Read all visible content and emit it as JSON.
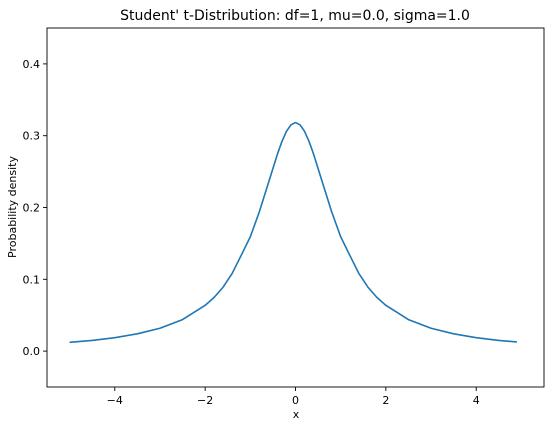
{
  "chart_data": {
    "type": "line",
    "title": "Student' t-Distribution: df=1, mu=0.0, sigma=1.0",
    "xlabel": "x",
    "ylabel": "Probability density",
    "xlim": [
      -5.5,
      5.5
    ],
    "ylim": [
      -0.05,
      0.45
    ],
    "xticks": [
      -4,
      -2,
      0,
      2,
      4
    ],
    "xtick_labels": [
      "−4",
      "−2",
      "0",
      "2",
      "4"
    ],
    "yticks": [
      0.0,
      0.1,
      0.2,
      0.3,
      0.4
    ],
    "ytick_labels": [
      "0.0",
      "0.1",
      "0.2",
      "0.3",
      "0.4"
    ],
    "grid": false,
    "line_color": "#1f77b4",
    "series": [
      {
        "x": [
          -5.0,
          -4.5,
          -4.0,
          -3.5,
          -3.0,
          -2.5,
          -2.0,
          -1.8,
          -1.6,
          -1.4,
          -1.2,
          -1.0,
          -0.8,
          -0.6,
          -0.4,
          -0.3,
          -0.2,
          -0.1,
          0.0,
          0.1,
          0.2,
          0.3,
          0.4,
          0.6,
          0.8,
          1.0,
          1.2,
          1.4,
          1.6,
          1.8,
          2.0,
          2.5,
          3.0,
          3.5,
          4.0,
          4.5,
          4.9
        ],
        "y": [
          0.0122,
          0.0149,
          0.0187,
          0.0241,
          0.0318,
          0.0439,
          0.0637,
          0.0748,
          0.0893,
          0.1084,
          0.1336,
          0.1592,
          0.1941,
          0.2341,
          0.2744,
          0.292,
          0.3061,
          0.3152,
          0.3183,
          0.3152,
          0.3061,
          0.292,
          0.2744,
          0.2341,
          0.1941,
          0.1592,
          0.1336,
          0.1084,
          0.0893,
          0.0748,
          0.0637,
          0.0439,
          0.0318,
          0.0241,
          0.0187,
          0.0149,
          0.0127
        ]
      }
    ]
  }
}
